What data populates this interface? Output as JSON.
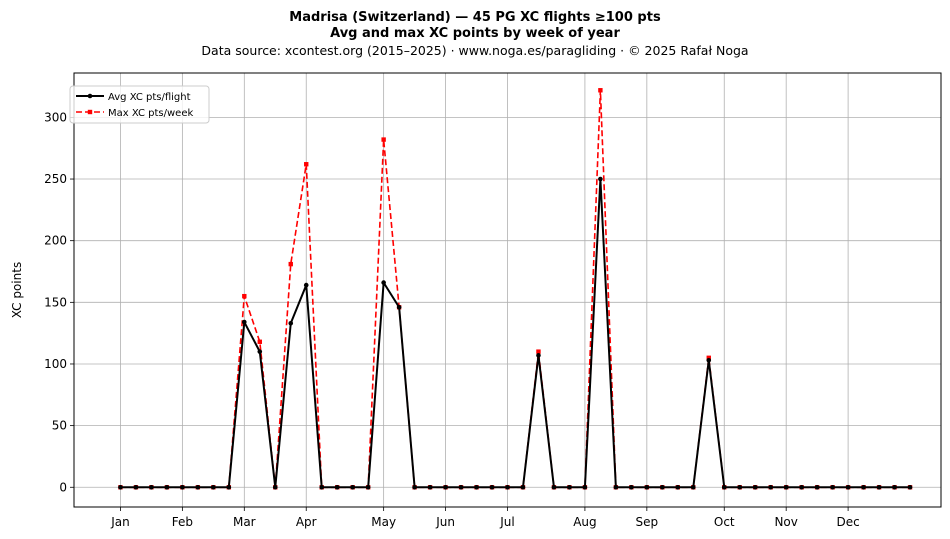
{
  "chart_data": {
    "type": "line",
    "title": "Madrisa (Switzerland)  —  45 PG XC flights ≥100 pts",
    "subtitle": "Avg and max XC points by week of year",
    "source_line": "Data source: xcontest.org (2015–2025)  ·  www.noga.es/paragliding  ·  © 2025 Rafał Noga",
    "xlabel": "",
    "ylabel": "XC points",
    "xlim": [
      -3,
      53
    ],
    "ylim": [
      -16,
      336
    ],
    "grid": true,
    "legend_position": "top-left",
    "x": [
      0,
      1,
      2,
      3,
      4,
      5,
      6,
      7,
      8,
      9,
      10,
      11,
      12,
      13,
      14,
      15,
      16,
      17,
      18,
      19,
      20,
      21,
      22,
      23,
      24,
      25,
      26,
      27,
      28,
      29,
      30,
      31,
      32,
      33,
      34,
      35,
      36,
      37,
      38,
      39,
      40,
      41,
      42,
      43,
      44,
      45,
      46,
      47,
      48,
      49,
      50,
      51
    ],
    "x_ticks": [
      {
        "value": 0,
        "label": "Jan"
      },
      {
        "value": 4,
        "label": "Feb"
      },
      {
        "value": 8,
        "label": "Mar"
      },
      {
        "value": 12,
        "label": "Apr"
      },
      {
        "value": 17,
        "label": "May"
      },
      {
        "value": 21,
        "label": "Jun"
      },
      {
        "value": 25,
        "label": "Jul"
      },
      {
        "value": 30,
        "label": "Aug"
      },
      {
        "value": 34,
        "label": "Sep"
      },
      {
        "value": 39,
        "label": "Oct"
      },
      {
        "value": 43,
        "label": "Nov"
      },
      {
        "value": 47,
        "label": "Dec"
      }
    ],
    "y_ticks": [
      0,
      50,
      100,
      150,
      200,
      250,
      300
    ],
    "series": [
      {
        "name": "Avg XC pts/flight",
        "color": "#000000",
        "line_style": "solid",
        "marker": "circle",
        "values": [
          0,
          0,
          0,
          0,
          0,
          0,
          0,
          0,
          134,
          110,
          0,
          133,
          164,
          0,
          0,
          0,
          0,
          166,
          146,
          0,
          0,
          0,
          0,
          0,
          0,
          0,
          0,
          107,
          0,
          0,
          0,
          250,
          0,
          0,
          0,
          0,
          0,
          0,
          103,
          0,
          0,
          0,
          0,
          0,
          0,
          0,
          0,
          0,
          0,
          0,
          0,
          0
        ]
      },
      {
        "name": "Max XC pts/week",
        "color": "#ff0000",
        "line_style": "dashed",
        "marker": "square",
        "values": [
          0,
          0,
          0,
          0,
          0,
          0,
          0,
          0,
          155,
          118,
          0,
          181,
          262,
          0,
          0,
          0,
          0,
          282,
          146,
          0,
          0,
          0,
          0,
          0,
          0,
          0,
          0,
          110,
          0,
          0,
          0,
          322,
          0,
          0,
          0,
          0,
          0,
          0,
          105,
          0,
          0,
          0,
          0,
          0,
          0,
          0,
          0,
          0,
          0,
          0,
          0,
          0
        ]
      }
    ]
  }
}
